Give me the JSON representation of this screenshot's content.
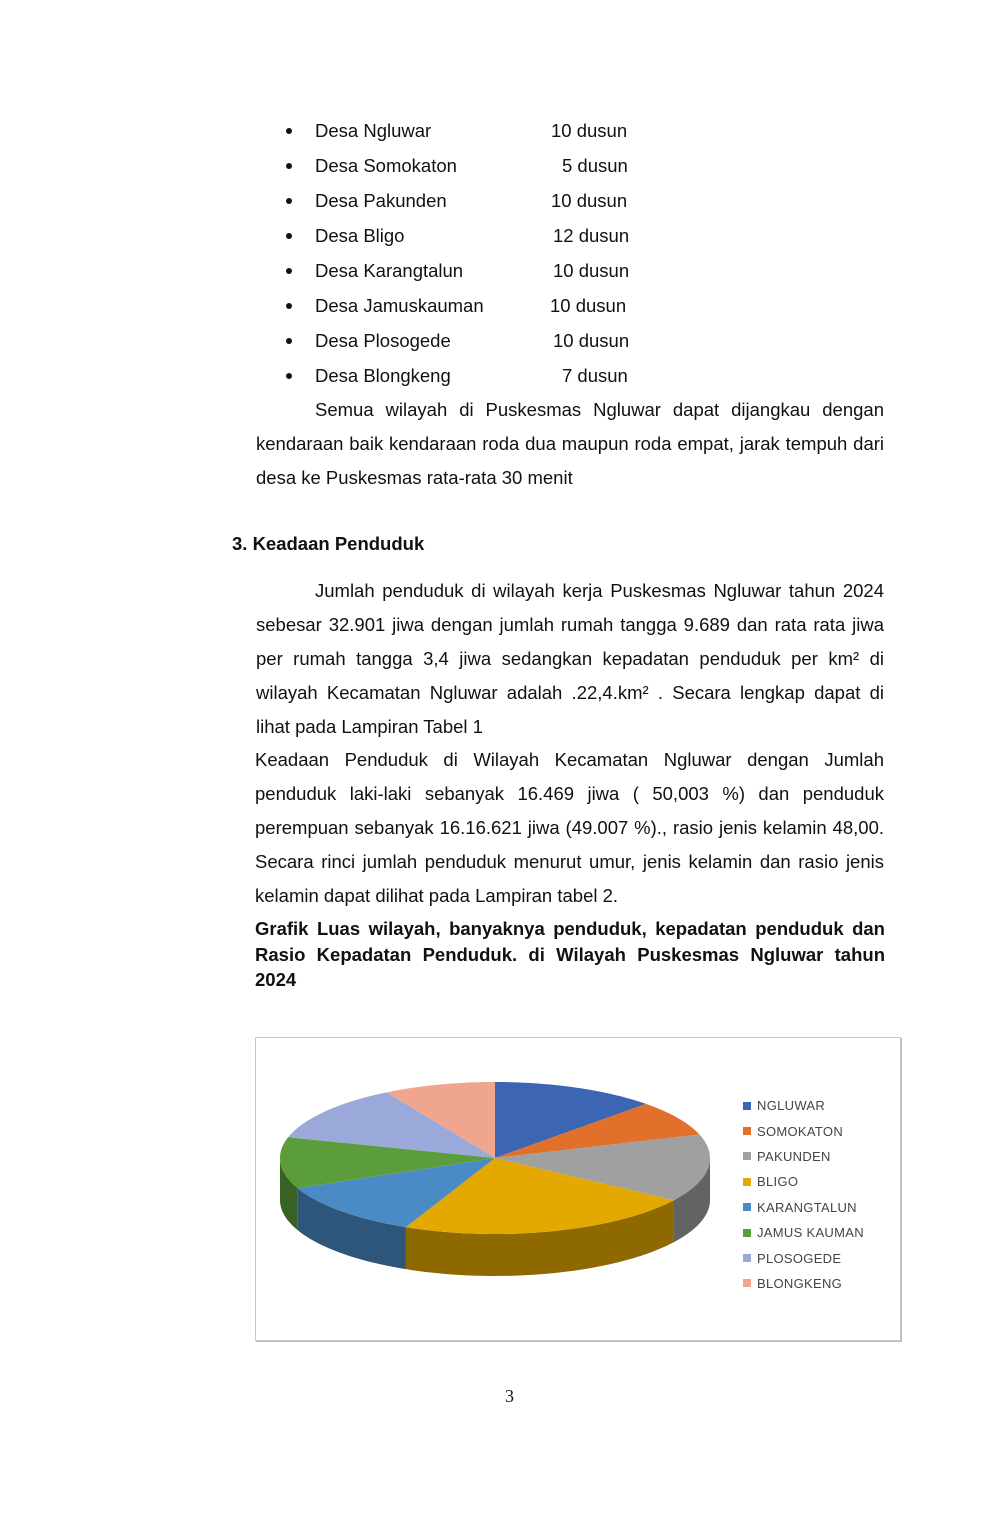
{
  "dusun_list": [
    {
      "name": "Desa Ngluwar",
      "value": "10  dusun"
    },
    {
      "name": "Desa Somokaton",
      "value": "5  dusun"
    },
    {
      "name": "Desa Pakunden",
      "value": "10  dusun"
    },
    {
      "name": "Desa Bligo",
      "value": "12 dusun"
    },
    {
      "name": "Desa Karangtalun",
      "value": "10 dusun"
    },
    {
      "name": "Desa Jamuskauman",
      "value": "10 dusun"
    },
    {
      "name": "Desa Plosogede",
      "value": "10 dusun"
    },
    {
      "name": "Desa Blongkeng",
      "value": "7 dusun"
    }
  ],
  "access_paragraph": "Semua wilayah di Puskesmas Ngluwar dapat dijangkau dengan kendaraan baik kendaraan roda dua maupun roda empat, jarak tempuh dari desa ke Puskesmas rata-rata 30 menit",
  "section_heading": "3.  Keadaan Penduduk",
  "population_paragraph": "Jumlah penduduk di wilayah kerja Puskesmas Ngluwar tahun 2024 sebesar 32.901 jiwa dengan jumlah rumah tangga 9.689 dan rata rata jiwa per rumah tangga 3,4 jiwa sedangkan kepadatan penduduk per km² di wilayah Kecamatan Ngluwar adalah .22,4.km² . Secara lengkap dapat di lihat pada Lampiran Tabel 1",
  "gender_paragraph": "Keadaan Penduduk di Wilayah Kecamatan Ngluwar dengan Jumlah penduduk laki-laki sebanyak 16.469 jiwa ( 50,003 %) dan penduduk perempuan sebanyak 16.16.621 jiwa (49.007 %)., rasio jenis kelamin 48,00. Secara rinci jumlah penduduk menurut umur, jenis kelamin dan rasio jenis kelamin dapat dilihat pada Lampiran tabel 2.",
  "chart_caption": "Grafik  Luas wilayah, banyaknya penduduk, kepadatan penduduk dan Rasio Kepadatan Penduduk. di Wilayah Puskesmas Ngluwar tahun 2024",
  "chart_data": {
    "type": "pie",
    "style": "3d",
    "legend_position": "right",
    "categories": [
      "NGLUWAR",
      "SOMOKATON",
      "PAKUNDEN",
      "BLIGO",
      "KARANGTALUN",
      "JAMUS KAUMAN",
      "PLOSOGEDE",
      "BLONGKENG"
    ],
    "values": [
      12.4,
      7.6,
      14.4,
      22.4,
      11.7,
      10.9,
      12.2,
      8.4
    ],
    "colors": [
      "#3c65b4",
      "#e0702a",
      "#a0a0a0",
      "#e4a900",
      "#4a8bc6",
      "#5b9d3b",
      "#9aa8da",
      "#efa58e"
    ]
  },
  "page_number": "3"
}
